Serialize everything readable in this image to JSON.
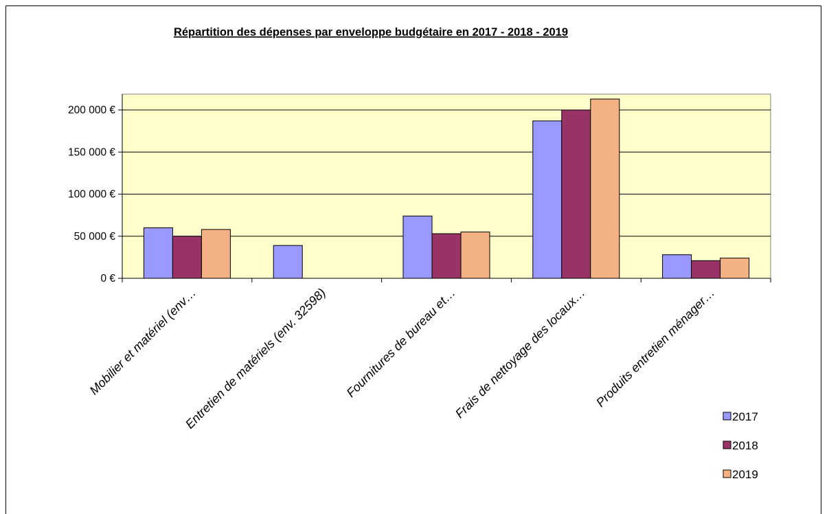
{
  "chart_data": {
    "type": "bar",
    "title": "Répartition des dépenses par enveloppe budgétaire en 2017 - 2018 - 2019",
    "categories": [
      "Mobilier et matériel  (env…",
      "Entretien de matériels (env. 32598)",
      "Fournitures de bureau et…",
      "Frais de nettoyage des locaux…",
      "Produits entretien ménager…"
    ],
    "series": [
      {
        "name": "2017",
        "color": "#9999ff",
        "values": [
          60000,
          39000,
          74000,
          187000,
          28000
        ]
      },
      {
        "name": "2018",
        "color": "#993366",
        "values": [
          50000,
          null,
          53000,
          200000,
          21000
        ]
      },
      {
        "name": "2019",
        "color": "#f4b183",
        "values": [
          58000,
          null,
          55000,
          213000,
          24000
        ]
      }
    ],
    "ylim": [
      0,
      200000
    ],
    "yticks": [
      {
        "value": 0,
        "label": "0 €"
      },
      {
        "value": 50000,
        "label": "50 000 €"
      },
      {
        "value": 100000,
        "label": "100 000 €"
      },
      {
        "value": 150000,
        "label": "150 000 €"
      },
      {
        "value": 200000,
        "label": "200 000 €"
      }
    ],
    "plot_background": "#ffffcc",
    "grid": true,
    "legend_position": "bottom-right"
  }
}
